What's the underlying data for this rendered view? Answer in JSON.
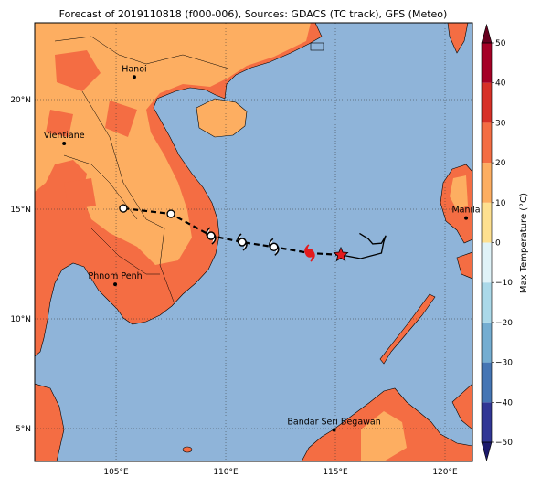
{
  "title": "Forecast of 2019110818 (f000-006), Sources: GDACS (TC track), GFS (Meteo)",
  "map": {
    "lonlim": [
      101.29,
      121.25
    ],
    "latlim": [
      3.5,
      23.5
    ],
    "lonticks": [
      {
        "value": 105,
        "label": "105°E"
      },
      {
        "value": 110,
        "label": "110°E"
      },
      {
        "value": 115,
        "label": "115°E"
      },
      {
        "value": 120,
        "label": "120°E"
      }
    ],
    "latticks": [
      {
        "value": 5,
        "label": "5°N"
      },
      {
        "value": 10,
        "label": "10°N"
      },
      {
        "value": 15,
        "label": "15°N"
      },
      {
        "value": 20,
        "label": "20°N"
      }
    ],
    "grid": true
  },
  "cities": [
    {
      "name": "Hanoi",
      "lon": 105.83,
      "lat": 21.03
    },
    {
      "name": "Vientiane",
      "lon": 102.63,
      "lat": 18.0
    },
    {
      "name": "Manila",
      "lon": 120.96,
      "lat": 14.6
    },
    {
      "name": "Phnom Penh",
      "lon": 104.96,
      "lat": 11.58
    },
    {
      "name": "Bandar Seri Begawan",
      "lon": 114.94,
      "lat": 4.94
    }
  ],
  "forecast_track": {
    "lon": [
      115.25,
      113.83,
      112.2,
      110.75,
      109.33,
      107.5,
      105.33
    ],
    "lat": [
      12.92,
      13.0,
      13.28,
      13.5,
      13.79,
      14.79,
      15.04
    ],
    "markers": [
      "star",
      "storm",
      "storm",
      "storm",
      "storm",
      "circle",
      "circle"
    ],
    "marker_colors": [
      "#e31a1c",
      "#e31a1c",
      "#000000",
      "#000000",
      "#000000",
      "#000000",
      "#000000"
    ],
    "color": "#000000"
  },
  "past_track": {
    "lon": [
      115.25,
      116.15,
      117.1,
      117.2,
      117.3,
      117.1,
      116.7,
      116.5,
      116.1
    ],
    "lat": [
      12.92,
      12.75,
      13.0,
      13.5,
      13.8,
      13.45,
      13.42,
      13.65,
      13.9
    ],
    "color": "#000000"
  },
  "colorbar": {
    "label": "Max Temperature (°C)",
    "lim": [
      -50,
      50
    ],
    "ticks": [
      50,
      40,
      30,
      20,
      10,
      0,
      {
        "value": -10,
        "label": "−10"
      },
      {
        "value": -20,
        "label": "−20"
      },
      {
        "value": -30,
        "label": "−30"
      },
      {
        "value": -40,
        "label": "−40"
      },
      {
        "value": -50,
        "label": "−50"
      }
    ],
    "bounds": [
      -50,
      -40,
      -30,
      -20,
      -10,
      0,
      10,
      20,
      30,
      40,
      50
    ],
    "colors": [
      "#313695",
      "#4575b4",
      "#74add1",
      "#abd9e9",
      "#e0f3f8",
      "#fee090",
      "#fdae61",
      "#f46d43",
      "#d73027",
      "#a50026"
    ],
    "under_color": "#1c1a6b",
    "over_color": "#67001f"
  }
}
